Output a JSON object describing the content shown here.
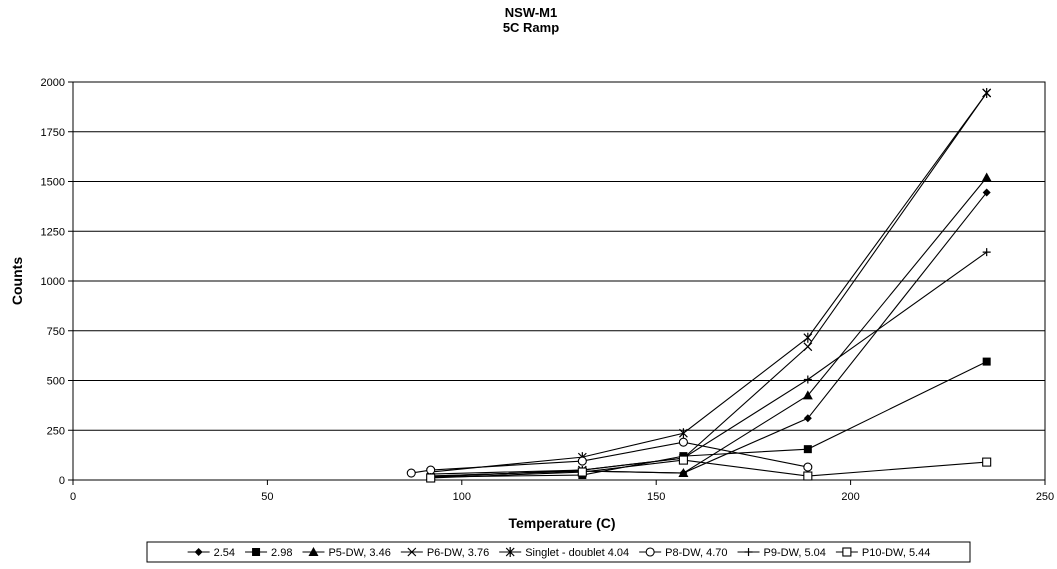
{
  "chart_data": {
    "type": "line",
    "title": "NSW-M1",
    "subtitle": "5C Ramp",
    "xlabel": "Temperature (C)",
    "ylabel": "Counts",
    "xlim": [
      0,
      250
    ],
    "ylim": [
      0,
      2000
    ],
    "xticks": [
      0,
      50,
      100,
      150,
      200,
      250
    ],
    "yticks": [
      0,
      250,
      500,
      750,
      1000,
      1250,
      1500,
      1750,
      2000
    ],
    "grid": "horizontal",
    "legend_position": "bottom",
    "series": [
      {
        "name": "2.54",
        "marker": "diamond-filled",
        "points": [
          [
            92,
            20
          ],
          [
            131,
            45
          ],
          [
            157,
            35
          ],
          [
            189,
            310
          ],
          [
            235,
            1445
          ]
        ]
      },
      {
        "name": "2.98",
        "marker": "square-filled",
        "points": [
          [
            92,
            15
          ],
          [
            131,
            25
          ],
          [
            157,
            120
          ],
          [
            189,
            155
          ],
          [
            235,
            595
          ]
        ]
      },
      {
        "name": "P5-DW, 3.46",
        "marker": "triangle-filled",
        "points": [
          [
            92,
            20
          ],
          [
            131,
            45
          ],
          [
            157,
            35
          ],
          [
            189,
            425
          ],
          [
            235,
            1520
          ]
        ]
      },
      {
        "name": "P6-DW, 3.76",
        "marker": "x",
        "points": [
          [
            92,
            30
          ],
          [
            131,
            50
          ],
          [
            157,
            110
          ],
          [
            189,
            670
          ],
          [
            235,
            1945
          ]
        ]
      },
      {
        "name": "Singlet - doublet 4.04",
        "marker": "asterisk",
        "points": [
          [
            92,
            40
          ],
          [
            131,
            115
          ],
          [
            157,
            235
          ],
          [
            189,
            715
          ],
          [
            235,
            1945
          ]
        ]
      },
      {
        "name": "P8-DW, 4.70",
        "marker": "circle-open",
        "points": [
          [
            87,
            35
          ],
          [
            92,
            50
          ],
          [
            131,
            95
          ],
          [
            157,
            190
          ],
          [
            189,
            65
          ]
        ]
      },
      {
        "name": "P9-DW, 5.04",
        "marker": "plus",
        "points": [
          [
            92,
            15
          ],
          [
            131,
            50
          ],
          [
            157,
            110
          ],
          [
            189,
            505
          ],
          [
            235,
            1145
          ]
        ]
      },
      {
        "name": "P10-DW, 5.44",
        "marker": "square-open",
        "points": [
          [
            92,
            10
          ],
          [
            131,
            40
          ],
          [
            157,
            100
          ],
          [
            189,
            20
          ],
          [
            235,
            90
          ]
        ]
      }
    ]
  }
}
